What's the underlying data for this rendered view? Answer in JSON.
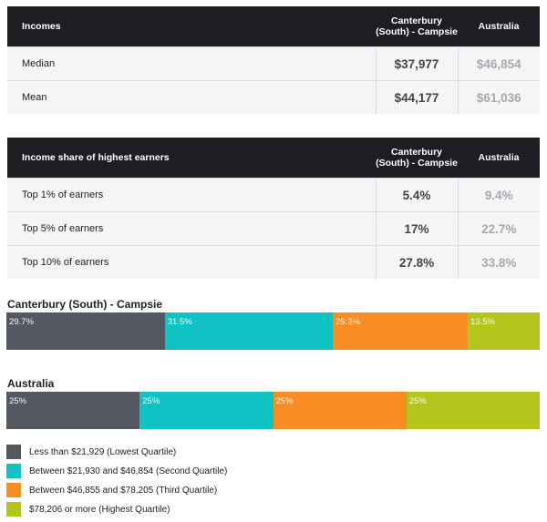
{
  "colors": {
    "header_bg": "#1d1e21",
    "row_bg": "#f5f4f7",
    "q1": "#545863",
    "q2": "#0fc3c4",
    "q3": "#f98c23",
    "q4": "#b4c51b"
  },
  "income_table": {
    "label_header": "Incomes",
    "col1_header": "Canterbury (South) - Campsie",
    "col2_header": "Australia",
    "rows": [
      {
        "label": "Median",
        "v1": "$37,977",
        "v2": "$46,854"
      },
      {
        "label": "Mean",
        "v1": "$44,177",
        "v2": "$61,036"
      }
    ]
  },
  "share_table": {
    "label_header": "Income share of highest earners",
    "col1_header": "Canterbury (South) - Campsie",
    "col2_header": "Australia",
    "rows": [
      {
        "label": "Top 1% of earners",
        "v1": "5.4%",
        "v2": "9.4%"
      },
      {
        "label": "Top 5% of earners",
        "v1": "17%",
        "v2": "22.7%"
      },
      {
        "label": "Top 10% of earners",
        "v1": "27.8%",
        "v2": "33.8%"
      }
    ]
  },
  "chart_data": [
    {
      "type": "bar",
      "stacked": true,
      "orientation": "horizontal",
      "title": "Canterbury (South) - Campsie",
      "series": [
        {
          "name": "Less than $21,929 (Lowest Quartile)",
          "value": 29.7,
          "label": "29.7%"
        },
        {
          "name": "Between $21,930 and $46,854 (Second Quartile)",
          "value": 31.5,
          "label": "31.5%"
        },
        {
          "name": "Between $46,855 and $78,205 (Third Quartile)",
          "value": 25.3,
          "label": "25.3%"
        },
        {
          "name": "$78,206 or more (Highest Quartile)",
          "value": 13.5,
          "label": "13.5%"
        }
      ]
    },
    {
      "type": "bar",
      "stacked": true,
      "orientation": "horizontal",
      "title": "Australia",
      "series": [
        {
          "name": "Less than $21,929 (Lowest Quartile)",
          "value": 25,
          "label": "25%"
        },
        {
          "name": "Between $21,930 and $46,854 (Second Quartile)",
          "value": 25,
          "label": "25%"
        },
        {
          "name": "Between $46,855 and $78,205 (Third Quartile)",
          "value": 25,
          "label": "25%"
        },
        {
          "name": "$78,206 or more (Highest Quartile)",
          "value": 25,
          "label": "25%"
        }
      ]
    }
  ],
  "legend": [
    {
      "label": "Less than $21,929 (Lowest Quartile)",
      "color_key": "q1"
    },
    {
      "label": "Between $21,930 and $46,854 (Second Quartile)",
      "color_key": "q2"
    },
    {
      "label": "Between $46,855 and $78,205 (Third Quartile)",
      "color_key": "q3"
    },
    {
      "label": "$78,206 or more (Highest Quartile)",
      "color_key": "q4"
    }
  ]
}
